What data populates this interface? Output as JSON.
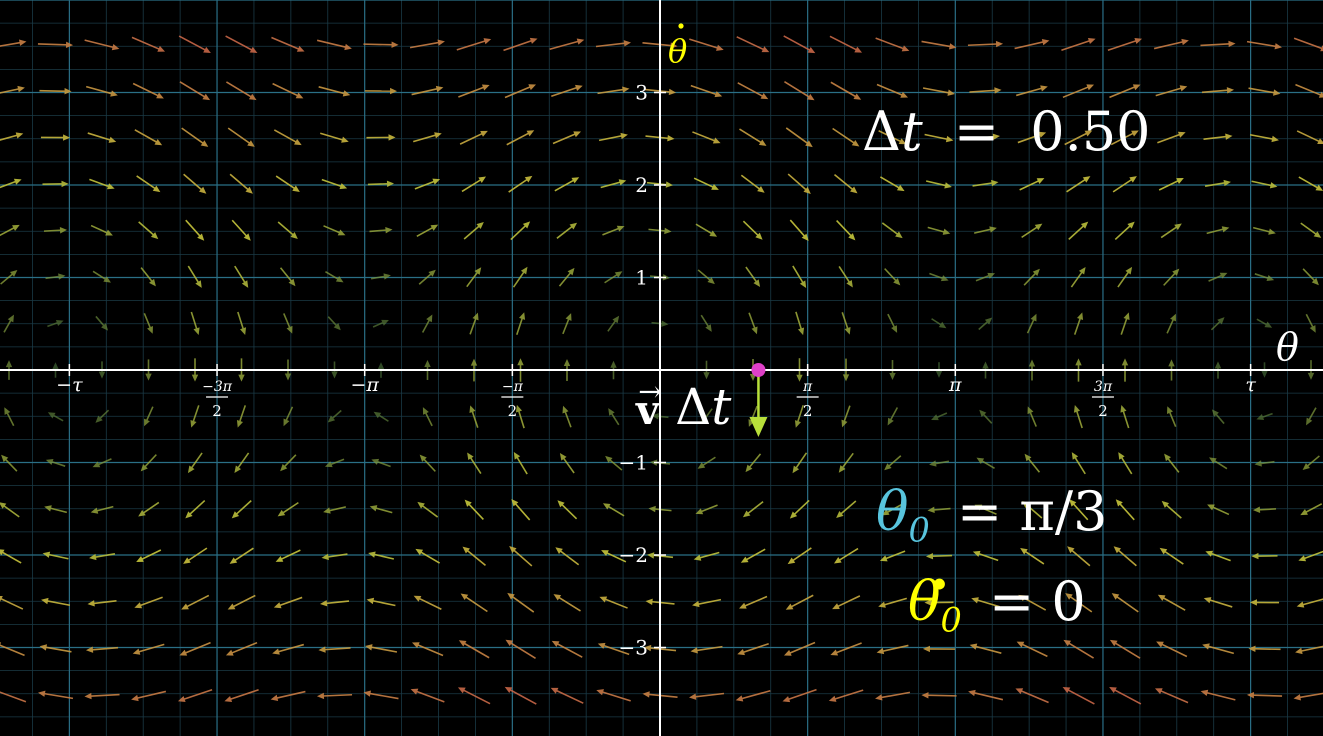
{
  "axes": {
    "x_label": "θ",
    "y_label": "θ̇",
    "y_label_base": "θ",
    "y_ticks": [
      "3",
      "2",
      "1",
      "−1",
      "−2",
      "−3"
    ],
    "y_tick_values": [
      3,
      2,
      1,
      -1,
      -2,
      -3
    ],
    "x_ticks": [
      {
        "value": -6.2832,
        "text": "−τ"
      },
      {
        "value": -4.7124,
        "num": "−3π",
        "den": "2"
      },
      {
        "value": -3.1416,
        "text": "−π"
      },
      {
        "value": -1.5708,
        "num": "−π",
        "den": "2"
      },
      {
        "value": 1.5708,
        "num": "π",
        "den": "2"
      },
      {
        "value": 3.1416,
        "text": "π"
      },
      {
        "value": 4.7124,
        "num": "3π",
        "den": "2"
      },
      {
        "value": 6.2832,
        "text": "τ"
      }
    ]
  },
  "field": {
    "description_system": "pendulum",
    "colors": {
      "slow": "#3f6f3f",
      "mid": "#c8c83c",
      "fast": "#c84b4b"
    }
  },
  "point": {
    "theta": 1.0472,
    "theta_dot": 0,
    "color": "#e040c8"
  },
  "vector": {
    "label_v": "v",
    "label_dt": "Δt",
    "color": "#b8e03a",
    "dtheta": 0,
    "dthetadot": -0.66
  },
  "labels": {
    "dt_eq": "Δt = 0.50",
    "dt_symbol": "Δt",
    "dt_equals": "=",
    "dt_value": "0.50",
    "theta0_symbol": "θ",
    "theta0_sub": "0",
    "theta0_rhs": "= π/3",
    "thetadot0_symbol": "θ",
    "thetadot0_sub": "0",
    "thetadot0_rhs": "= 0"
  },
  "colors": {
    "theta0": "#58c4dd",
    "thetadot": "#ffff00",
    "grid_major": "#2a6f86",
    "grid_minor": "#1a3a46",
    "axis": "#ffffff"
  }
}
